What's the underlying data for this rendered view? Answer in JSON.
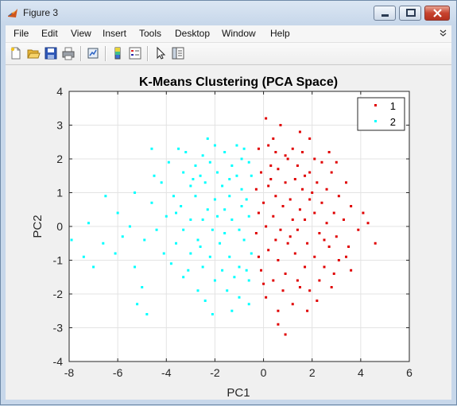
{
  "window": {
    "title": "Figure 3",
    "app_icon": "matlab-icon",
    "controls": [
      "minimize-icon",
      "maximize-icon",
      "close-icon"
    ]
  },
  "menu": {
    "items": [
      "File",
      "Edit",
      "View",
      "Insert",
      "Tools",
      "Desktop",
      "Window",
      "Help"
    ]
  },
  "toolbar": {
    "icons": [
      "new-figure-icon",
      "open-file-icon",
      "save-icon",
      "print-icon",
      "link-plot-icon",
      "colorbar-icon",
      "legend-icon",
      "pointer-icon",
      "property-editor-icon"
    ]
  },
  "chart_data": {
    "type": "scatter",
    "title": "K-Means Clustering (PCA Space)",
    "xlabel": "PC1",
    "ylabel": "PC2",
    "xlim": [
      -8,
      6
    ],
    "ylim": [
      -4,
      4
    ],
    "xticks": [
      "-8",
      "-6",
      "-4",
      "-2",
      "0",
      "2",
      "4",
      "6"
    ],
    "yticks": [
      "-4",
      "-3",
      "-2",
      "-1",
      "0",
      "1",
      "2",
      "3",
      "4"
    ],
    "grid": true,
    "legend_position": "top-right",
    "series": [
      {
        "name": "1",
        "color": "#e00000",
        "points": [
          [
            0.1,
            3.2
          ],
          [
            0.7,
            3.0
          ],
          [
            1.9,
            2.6
          ],
          [
            0.2,
            2.4
          ],
          [
            0.5,
            2.2
          ],
          [
            1.2,
            2.3
          ],
          [
            2.1,
            2.0
          ],
          [
            2.7,
            2.2
          ],
          [
            -0.2,
            2.3
          ],
          [
            0.9,
            2.1
          ],
          [
            1.6,
            2.2
          ],
          [
            1.0,
            2.0
          ],
          [
            0.3,
            1.8
          ],
          [
            2.4,
            1.9
          ],
          [
            1.4,
            1.8
          ],
          [
            -0.1,
            1.6
          ],
          [
            0.6,
            1.7
          ],
          [
            1.9,
            1.6
          ],
          [
            2.8,
            1.6
          ],
          [
            3.4,
            1.3
          ],
          [
            1.3,
            1.4
          ],
          [
            0.9,
            1.3
          ],
          [
            2.2,
            1.3
          ],
          [
            0.2,
            1.2
          ],
          [
            -0.3,
            1.1
          ],
          [
            1.6,
            1.1
          ],
          [
            2.6,
            1.1
          ],
          [
            3.1,
            0.9
          ],
          [
            0.5,
            0.9
          ],
          [
            1.1,
            0.8
          ],
          [
            1.9,
            0.8
          ],
          [
            2.4,
            0.7
          ],
          [
            3.6,
            0.6
          ],
          [
            4.1,
            0.4
          ],
          [
            0.0,
            0.7
          ],
          [
            0.8,
            0.6
          ],
          [
            1.5,
            0.5
          ],
          [
            2.1,
            0.4
          ],
          [
            2.9,
            0.4
          ],
          [
            -0.2,
            0.4
          ],
          [
            0.4,
            0.3
          ],
          [
            1.2,
            0.2
          ],
          [
            1.7,
            0.2
          ],
          [
            2.6,
            0.1
          ],
          [
            3.3,
            0.2
          ],
          [
            3.9,
            -0.1
          ],
          [
            4.6,
            -0.5
          ],
          [
            0.1,
            0.0
          ],
          [
            0.7,
            -0.1
          ],
          [
            1.4,
            -0.1
          ],
          [
            2.3,
            -0.2
          ],
          [
            3.0,
            -0.3
          ],
          [
            -0.3,
            -0.2
          ],
          [
            0.5,
            -0.4
          ],
          [
            1.0,
            -0.5
          ],
          [
            1.8,
            -0.5
          ],
          [
            2.7,
            -0.6
          ],
          [
            3.5,
            -0.6
          ],
          [
            0.2,
            -0.7
          ],
          [
            1.3,
            -0.8
          ],
          [
            2.1,
            -0.9
          ],
          [
            3.1,
            -1.0
          ],
          [
            0.6,
            -1.0
          ],
          [
            1.7,
            -1.2
          ],
          [
            2.5,
            -1.2
          ],
          [
            -0.1,
            -1.3
          ],
          [
            0.9,
            -1.4
          ],
          [
            3.6,
            -1.3
          ],
          [
            0.4,
            -1.6
          ],
          [
            1.4,
            -1.6
          ],
          [
            2.3,
            -1.6
          ],
          [
            1.9,
            -1.9
          ],
          [
            0.8,
            -1.9
          ],
          [
            0.1,
            -2.1
          ],
          [
            2.8,
            -1.8
          ],
          [
            1.2,
            -2.3
          ],
          [
            0.6,
            -2.5
          ],
          [
            1.8,
            -2.5
          ],
          [
            0.9,
            -3.2
          ],
          [
            1.5,
            -1.8
          ],
          [
            2.0,
            1.0
          ],
          [
            1.1,
            -0.3
          ],
          [
            0.3,
            1.4
          ],
          [
            2.5,
            -0.4
          ],
          [
            3.0,
            1.9
          ],
          [
            0.4,
            2.6
          ],
          [
            1.5,
            2.8
          ],
          [
            -0.2,
            -0.9
          ],
          [
            2.2,
            -2.2
          ],
          [
            3.4,
            -0.9
          ],
          [
            4.3,
            0.1
          ],
          [
            0.0,
            -1.7
          ],
          [
            1.7,
            1.5
          ],
          [
            2.9,
            -1.4
          ],
          [
            0.6,
            -2.9
          ]
        ]
      },
      {
        "name": "2",
        "color": "#00ffff",
        "points": [
          [
            -3.5,
            2.3
          ],
          [
            -2.0,
            2.4
          ],
          [
            -1.1,
            2.4
          ],
          [
            -3.2,
            2.2
          ],
          [
            -2.5,
            2.1
          ],
          [
            -1.6,
            2.2
          ],
          [
            -0.8,
            2.3
          ],
          [
            -3.9,
            1.9
          ],
          [
            -2.8,
            1.8
          ],
          [
            -2.2,
            1.9
          ],
          [
            -1.3,
            1.8
          ],
          [
            -0.6,
            1.9
          ],
          [
            -3.3,
            1.6
          ],
          [
            -2.6,
            1.5
          ],
          [
            -1.9,
            1.6
          ],
          [
            -1.1,
            1.5
          ],
          [
            -0.5,
            1.5
          ],
          [
            -4.2,
            1.3
          ],
          [
            -3.0,
            1.2
          ],
          [
            -2.4,
            1.3
          ],
          [
            -1.7,
            1.2
          ],
          [
            -0.9,
            1.1
          ],
          [
            -5.3,
            1.0
          ],
          [
            -3.7,
            0.9
          ],
          [
            -2.8,
            0.9
          ],
          [
            -2.0,
            0.8
          ],
          [
            -1.4,
            0.9
          ],
          [
            -0.7,
            0.8
          ],
          [
            -6.5,
            0.9
          ],
          [
            -4.6,
            0.7
          ],
          [
            -3.4,
            0.6
          ],
          [
            -2.3,
            0.5
          ],
          [
            -1.6,
            0.5
          ],
          [
            -0.9,
            0.6
          ],
          [
            -6.0,
            0.4
          ],
          [
            -4.0,
            0.3
          ],
          [
            -3.0,
            0.2
          ],
          [
            -2.5,
            0.2
          ],
          [
            -1.3,
            0.2
          ],
          [
            -0.6,
            0.3
          ],
          [
            -7.2,
            0.1
          ],
          [
            -5.5,
            0.0
          ],
          [
            -4.4,
            -0.1
          ],
          [
            -3.3,
            -0.1
          ],
          [
            -2.1,
            -0.1
          ],
          [
            -1.0,
            -0.1
          ],
          [
            -7.9,
            -0.4
          ],
          [
            -6.6,
            -0.5
          ],
          [
            -4.9,
            -0.4
          ],
          [
            -3.6,
            -0.5
          ],
          [
            -2.7,
            -0.4
          ],
          [
            -1.8,
            -0.5
          ],
          [
            -0.8,
            -0.4
          ],
          [
            -7.4,
            -0.9
          ],
          [
            -6.1,
            -0.8
          ],
          [
            -4.1,
            -0.8
          ],
          [
            -3.0,
            -0.8
          ],
          [
            -2.2,
            -0.9
          ],
          [
            -1.4,
            -0.9
          ],
          [
            -0.5,
            -0.8
          ],
          [
            -7.0,
            -1.2
          ],
          [
            -5.3,
            -1.2
          ],
          [
            -3.8,
            -1.1
          ],
          [
            -2.5,
            -1.2
          ],
          [
            -1.7,
            -1.3
          ],
          [
            -1.0,
            -1.2
          ],
          [
            -3.3,
            -1.5
          ],
          [
            -2.0,
            -1.6
          ],
          [
            -1.2,
            -1.5
          ],
          [
            -0.6,
            -1.6
          ],
          [
            -5.0,
            -1.8
          ],
          [
            -2.7,
            -1.9
          ],
          [
            -1.5,
            -1.9
          ],
          [
            -5.2,
            -2.3
          ],
          [
            -2.4,
            -2.2
          ],
          [
            -1.0,
            -2.1
          ],
          [
            -2.1,
            -2.6
          ],
          [
            -1.3,
            -2.5
          ],
          [
            -4.8,
            -2.6
          ],
          [
            -1.6,
            -0.2
          ],
          [
            -2.9,
            1.4
          ],
          [
            -0.9,
            2.0
          ],
          [
            -4.5,
            1.5
          ],
          [
            -3.1,
            -1.3
          ],
          [
            -0.7,
            -1.3
          ],
          [
            -1.9,
            0.3
          ],
          [
            -2.6,
            -0.6
          ],
          [
            -3.6,
            0.4
          ],
          [
            -5.8,
            -0.3
          ],
          [
            -1.4,
            1.4
          ],
          [
            -0.6,
            -2.3
          ],
          [
            -2.3,
            2.6
          ],
          [
            -4.6,
            2.3
          ]
        ]
      }
    ]
  }
}
